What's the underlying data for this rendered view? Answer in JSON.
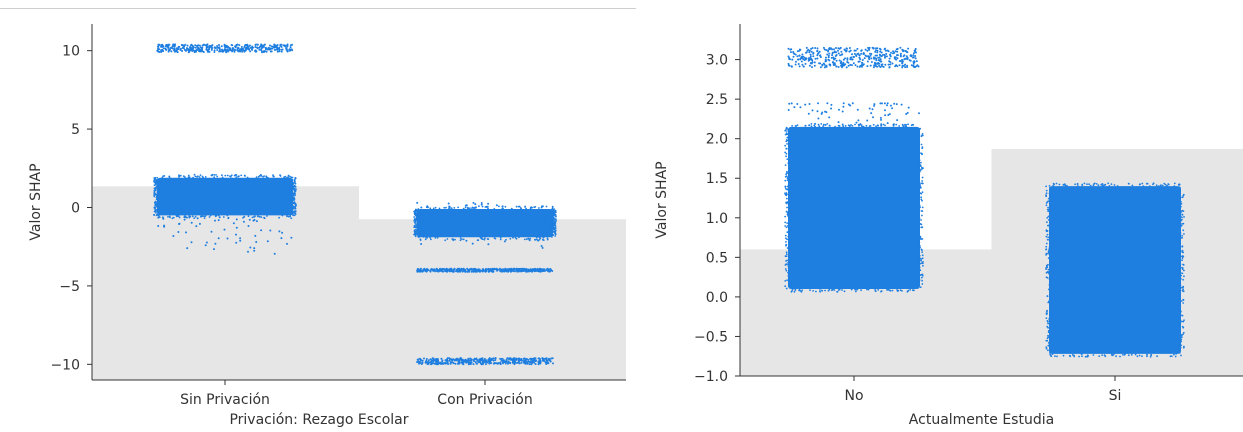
{
  "chart_data": [
    {
      "type": "scatter",
      "xlabel": "Privación: Rezago Escolar",
      "ylabel": "Valor SHAP",
      "ylim": [
        -11,
        11.7
      ],
      "yticks": [
        10,
        5,
        0,
        -5,
        -10
      ],
      "ytick_labels": [
        "10",
        "5",
        "0",
        "−5",
        "−10"
      ],
      "categories": [
        "Sin Privación",
        "Con Privación"
      ],
      "point_color": "#1f7fe0",
      "background_color": "#e6e6e6",
      "background_steps": [
        1.35,
        -0.75
      ],
      "clusters": [
        {
          "category": 0,
          "y_min": -0.5,
          "y_max": 1.9,
          "density": "dense"
        },
        {
          "category": 0,
          "y_min": 9.9,
          "y_max": 10.4,
          "density": "band"
        },
        {
          "category": 0,
          "y_min": -3.0,
          "y_max": -0.5,
          "density": "sparse"
        },
        {
          "category": 1,
          "y_min": -1.9,
          "y_max": -0.1,
          "density": "dense"
        },
        {
          "category": 1,
          "y_min": -4.1,
          "y_max": -3.9,
          "density": "band"
        },
        {
          "category": 1,
          "y_min": -10.0,
          "y_max": -9.6,
          "density": "band"
        },
        {
          "category": 1,
          "y_min": -2.8,
          "y_max": 0.3,
          "density": "sparse"
        }
      ]
    },
    {
      "type": "scatter",
      "xlabel": "Actualmente Estudia",
      "ylabel": "Valor SHAP",
      "ylim": [
        -1.0,
        3.45
      ],
      "yticks": [
        3.0,
        2.5,
        2.0,
        1.5,
        1.0,
        0.5,
        0.0,
        -0.5,
        -1.0
      ],
      "ytick_labels": [
        "3.0",
        "2.5",
        "2.0",
        "1.5",
        "1.0",
        "0.5",
        "0.0",
        "−0.5",
        "−1.0"
      ],
      "categories": [
        "No",
        "Si"
      ],
      "point_color": "#1f7fe0",
      "background_color": "#e6e6e6",
      "background_steps": [
        0.6,
        1.87
      ],
      "clusters": [
        {
          "category": 0,
          "y_min": 0.1,
          "y_max": 2.15,
          "density": "dense"
        },
        {
          "category": 0,
          "y_min": 2.9,
          "y_max": 3.15,
          "density": "band"
        },
        {
          "category": 0,
          "y_min": 2.15,
          "y_max": 2.45,
          "density": "sparse"
        },
        {
          "category": 1,
          "y_min": -0.72,
          "y_max": 1.4,
          "density": "dense"
        }
      ]
    }
  ]
}
